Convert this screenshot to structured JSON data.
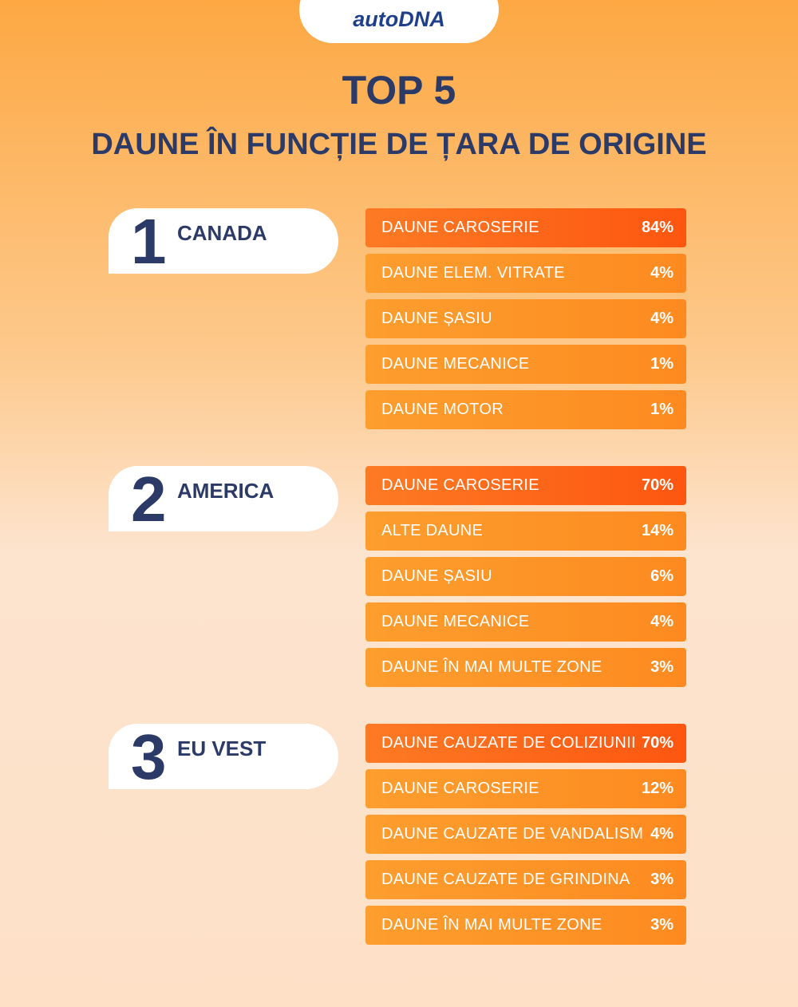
{
  "header": {
    "logo": "autoDNA",
    "title": "TOP 5",
    "subtitle": "DAUNE ÎN FUNCȚIE DE ȚARA DE ORIGINE"
  },
  "groups": [
    {
      "rank": "1",
      "country": "CANADA",
      "rows": [
        [
          "DAUNE CAROSERIE",
          "84%"
        ],
        [
          "DAUNE ELEM. VITRATE",
          "4%"
        ],
        [
          "DAUNE ȘASIU",
          "4%"
        ],
        [
          "DAUNE MECANICE",
          "1%"
        ],
        [
          "DAUNE MOTOR",
          "1%"
        ]
      ]
    },
    {
      "rank": "2",
      "country": "AMERICA",
      "rows": [
        [
          "DAUNE CAROSERIE",
          "70%"
        ],
        [
          "ALTE DAUNE",
          "14%"
        ],
        [
          "DAUNE ȘASIU",
          "6%"
        ],
        [
          "DAUNE MECANICE",
          "4%"
        ],
        [
          "DAUNE ÎN MAI MULTE ZONE",
          "3%"
        ]
      ]
    },
    {
      "rank": "3",
      "country": "EU VEST",
      "rows": [
        [
          "DAUNE CAUZATE DE COLIZIUNII",
          "70%"
        ],
        [
          "DAUNE CAROSERIE",
          "12%"
        ],
        [
          "DAUNE CAUZATE DE VANDALISM",
          "4%"
        ],
        [
          "DAUNE CAUZATE DE GRINDINA",
          "3%"
        ],
        [
          "DAUNE ÎN MAI MULTE ZONE",
          "3%"
        ]
      ]
    }
  ]
}
